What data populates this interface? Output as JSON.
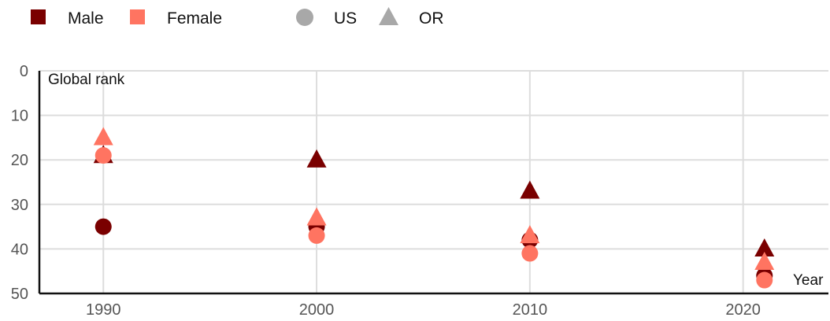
{
  "chart_data": {
    "type": "scatter",
    "title": "",
    "xlabel": "Year",
    "ylabel": "Global rank",
    "x_ticks": [
      1990,
      2000,
      2010,
      2020
    ],
    "y_ticks": [
      0,
      10,
      20,
      30,
      40,
      50
    ],
    "xlim": [
      1987,
      2024
    ],
    "ylim": [
      0,
      50
    ],
    "y_reversed": true,
    "grid": true,
    "legend": {
      "placement": "top-left",
      "sex": [
        {
          "label": "Male",
          "color": "#7a0000"
        },
        {
          "label": "Female",
          "color": "#ff7461"
        }
      ],
      "country": [
        {
          "label": "US",
          "shape": "circle",
          "color": "#a8a8a8"
        },
        {
          "label": "OR",
          "shape": "triangle",
          "color": "#a8a8a8"
        }
      ]
    },
    "series": [
      {
        "sex": "Male",
        "country": "US",
        "shape": "circle",
        "color": "#7a0000",
        "points": [
          [
            1990,
            35
          ],
          [
            2000,
            35
          ],
          [
            2010,
            38
          ],
          [
            2021,
            46
          ]
        ]
      },
      {
        "sex": "Male",
        "country": "OR",
        "shape": "triangle",
        "color": "#7a0000",
        "points": [
          [
            1990,
            19
          ],
          [
            2000,
            20
          ],
          [
            2010,
            27
          ],
          [
            2021,
            40
          ]
        ]
      },
      {
        "sex": "Female",
        "country": "US",
        "shape": "circle",
        "color": "#ff7461",
        "points": [
          [
            1990,
            19
          ],
          [
            2000,
            37
          ],
          [
            2010,
            41
          ],
          [
            2021,
            47
          ]
        ]
      },
      {
        "sex": "Female",
        "country": "OR",
        "shape": "triangle",
        "color": "#ff7461",
        "points": [
          [
            1990,
            15
          ],
          [
            2000,
            33
          ],
          [
            2010,
            37
          ],
          [
            2021,
            43
          ]
        ]
      }
    ]
  }
}
